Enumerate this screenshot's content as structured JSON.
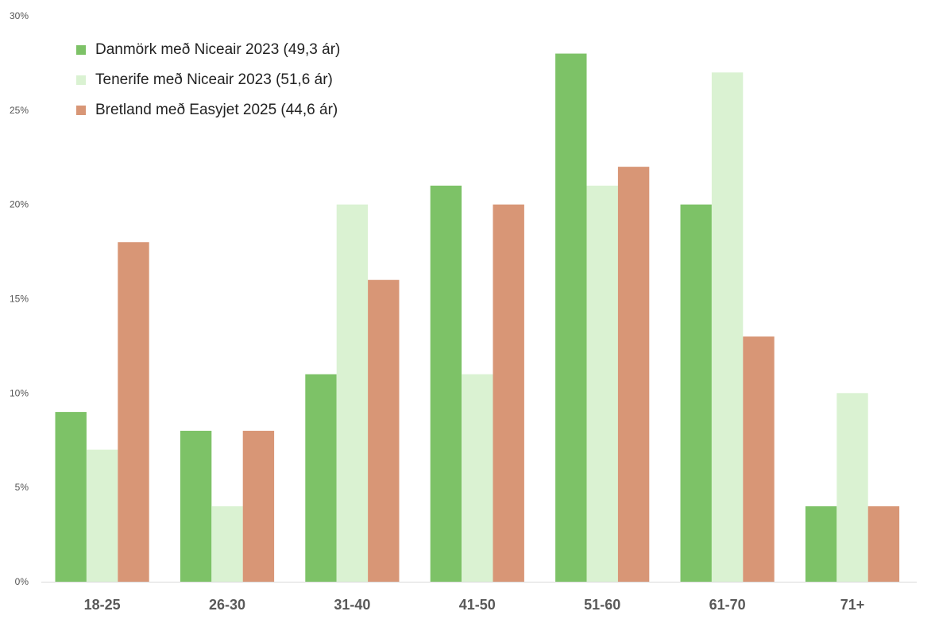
{
  "chart_data": {
    "type": "bar",
    "categories": [
      "18-25",
      "26-30",
      "31-40",
      "41-50",
      "51-60",
      "61-70",
      "71+"
    ],
    "series": [
      {
        "name": "Danmörk með Niceair 2023 (49,3 ár)",
        "color": "#7dc267",
        "values": [
          9,
          8,
          11,
          21,
          28,
          20,
          4
        ]
      },
      {
        "name": "Tenerife með Niceair 2023 (51,6 ár)",
        "color": "#daf2d2",
        "values": [
          7,
          4,
          20,
          11,
          21,
          27,
          10
        ]
      },
      {
        "name": "Bretland með Easyjet 2025 (44,6 ár)",
        "color": "#d89676",
        "values": [
          18,
          8,
          16,
          20,
          22,
          13,
          4
        ]
      }
    ],
    "yticks": [
      "0%",
      "5%",
      "10%",
      "15%",
      "20%",
      "25%",
      "30%"
    ],
    "ylim": [
      0,
      30
    ],
    "ylabel_unit": "%",
    "grid": false,
    "legend_position": "top-left",
    "title": "",
    "xlabel": "",
    "ylabel": ""
  }
}
